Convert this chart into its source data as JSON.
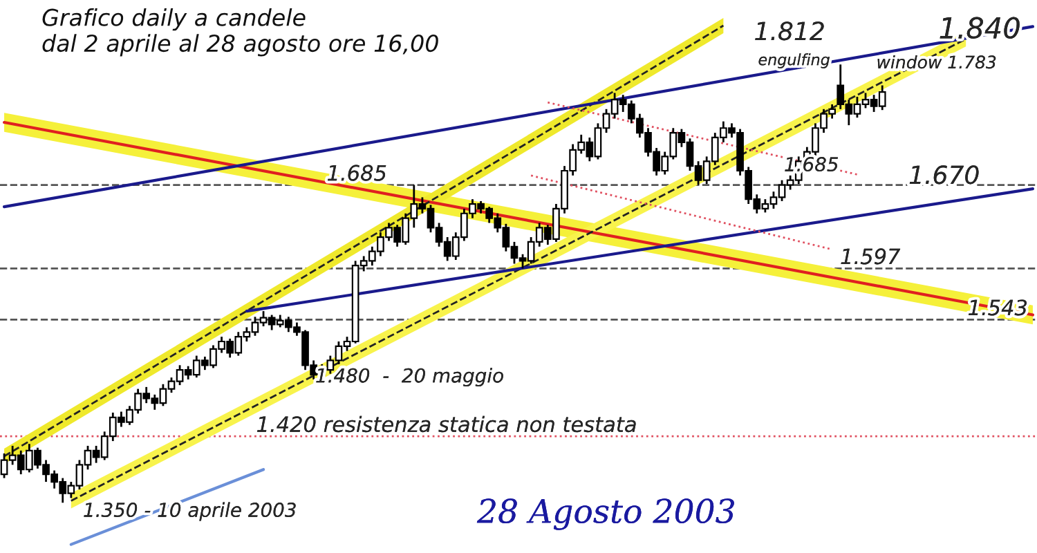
{
  "chart_data": {
    "type": "candlestick",
    "title": "Grafico daily a candele\ndal 2 aprile al 28 agosto ore 16,00",
    "categories": [
      null,
      null,
      null,
      null,
      null,
      null,
      null,
      null,
      null,
      null,
      null,
      null,
      null,
      null,
      null,
      null,
      null,
      null,
      null,
      null,
      null,
      null,
      null,
      null,
      null,
      null,
      null,
      null,
      null,
      null,
      null,
      null,
      null,
      null,
      null,
      null,
      null,
      null,
      null,
      null,
      null,
      null,
      null,
      null,
      null,
      null,
      null,
      null,
      null,
      null,
      null,
      null,
      null,
      null,
      null,
      null,
      null,
      null,
      null,
      null,
      null,
      null,
      null,
      null,
      null,
      null,
      null,
      null,
      null,
      null,
      null,
      null,
      null,
      null,
      null,
      null,
      null,
      null,
      null,
      null,
      null,
      null,
      null,
      null,
      null,
      null,
      null,
      null,
      null,
      null,
      null,
      null,
      null,
      null,
      null,
      null,
      null,
      null,
      null,
      null,
      null,
      null,
      null,
      null,
      null,
      null,
      null,
      null,
      null,
      null,
      null,
      null,
      null,
      null,
      null,
      null,
      null,
      null,
      null,
      null,
      null,
      null,
      null,
      null
    ],
    "ohlc": [
      [
        1.38,
        1.402,
        1.376,
        1.395
      ],
      [
        1.395,
        1.41,
        1.39,
        1.4
      ],
      [
        1.4,
        1.405,
        1.38,
        1.385
      ],
      [
        1.385,
        1.412,
        1.382,
        1.405
      ],
      [
        1.405,
        1.408,
        1.386,
        1.39
      ],
      [
        1.39,
        1.395,
        1.372,
        1.38
      ],
      [
        1.38,
        1.384,
        1.365,
        1.372
      ],
      [
        1.372,
        1.376,
        1.35,
        1.36
      ],
      [
        1.36,
        1.372,
        1.355,
        1.368
      ],
      [
        1.368,
        1.395,
        1.364,
        1.39
      ],
      [
        1.39,
        1.41,
        1.385,
        1.405
      ],
      [
        1.405,
        1.41,
        1.392,
        1.398
      ],
      [
        1.398,
        1.425,
        1.395,
        1.42
      ],
      [
        1.42,
        1.445,
        1.415,
        1.44
      ],
      [
        1.44,
        1.446,
        1.43,
        1.435
      ],
      [
        1.435,
        1.452,
        1.432,
        1.448
      ],
      [
        1.448,
        1.47,
        1.444,
        1.465
      ],
      [
        1.465,
        1.472,
        1.455,
        1.46
      ],
      [
        1.46,
        1.464,
        1.448,
        1.455
      ],
      [
        1.455,
        1.475,
        1.452,
        1.47
      ],
      [
        1.47,
        1.482,
        1.466,
        1.478
      ],
      [
        1.478,
        1.495,
        1.474,
        1.49
      ],
      [
        1.49,
        1.494,
        1.48,
        1.485
      ],
      [
        1.485,
        1.505,
        1.482,
        1.5
      ],
      [
        1.5,
        1.504,
        1.49,
        1.495
      ],
      [
        1.495,
        1.516,
        1.492,
        1.512
      ],
      [
        1.512,
        1.525,
        1.508,
        1.52
      ],
      [
        1.52,
        1.523,
        1.503,
        1.508
      ],
      [
        1.508,
        1.53,
        1.505,
        1.525
      ],
      [
        1.525,
        1.535,
        1.52,
        1.53
      ],
      [
        1.53,
        1.546,
        1.526,
        1.54
      ],
      [
        1.54,
        1.552,
        1.536,
        1.545
      ],
      [
        1.545,
        1.548,
        1.532,
        1.538
      ],
      [
        1.538,
        1.548,
        1.535,
        1.542
      ],
      [
        1.542,
        1.546,
        1.53,
        1.535
      ],
      [
        1.535,
        1.54,
        1.526,
        1.53
      ],
      [
        1.53,
        1.532,
        1.49,
        1.495
      ],
      [
        1.495,
        1.5,
        1.48,
        1.485
      ],
      [
        1.485,
        1.496,
        1.482,
        1.49
      ],
      [
        1.49,
        1.505,
        1.486,
        1.5
      ],
      [
        1.5,
        1.52,
        1.496,
        1.515
      ],
      [
        1.515,
        1.525,
        1.51,
        1.52
      ],
      [
        1.52,
        1.605,
        1.518,
        1.6
      ],
      [
        1.6,
        1.61,
        1.594,
        1.605
      ],
      [
        1.605,
        1.62,
        1.6,
        1.615
      ],
      [
        1.615,
        1.635,
        1.61,
        1.63
      ],
      [
        1.63,
        1.645,
        1.626,
        1.64
      ],
      [
        1.64,
        1.643,
        1.62,
        1.625
      ],
      [
        1.625,
        1.655,
        1.622,
        1.65
      ],
      [
        1.65,
        1.685,
        1.64,
        1.665
      ],
      [
        1.665,
        1.672,
        1.655,
        1.66
      ],
      [
        1.66,
        1.664,
        1.635,
        1.64
      ],
      [
        1.64,
        1.645,
        1.62,
        1.625
      ],
      [
        1.625,
        1.63,
        1.605,
        1.61
      ],
      [
        1.61,
        1.635,
        1.606,
        1.63
      ],
      [
        1.63,
        1.66,
        1.626,
        1.655
      ],
      [
        1.655,
        1.67,
        1.65,
        1.665
      ],
      [
        1.665,
        1.668,
        1.655,
        1.66
      ],
      [
        1.66,
        1.662,
        1.645,
        1.65
      ],
      [
        1.65,
        1.655,
        1.635,
        1.64
      ],
      [
        1.64,
        1.644,
        1.615,
        1.62
      ],
      [
        1.62,
        1.625,
        1.602,
        1.608
      ],
      [
        1.608,
        1.612,
        1.597,
        1.605
      ],
      [
        1.605,
        1.63,
        1.602,
        1.625
      ],
      [
        1.625,
        1.645,
        1.62,
        1.64
      ],
      [
        1.64,
        1.643,
        1.622,
        1.628
      ],
      [
        1.628,
        1.665,
        1.625,
        1.66
      ],
      [
        1.66,
        1.705,
        1.655,
        1.7
      ],
      [
        1.7,
        1.728,
        1.695,
        1.722
      ],
      [
        1.722,
        1.738,
        1.718,
        1.73
      ],
      [
        1.73,
        1.735,
        1.71,
        1.715
      ],
      [
        1.715,
        1.75,
        1.712,
        1.745
      ],
      [
        1.745,
        1.765,
        1.74,
        1.76
      ],
      [
        1.76,
        1.782,
        1.755,
        1.775
      ],
      [
        1.775,
        1.78,
        1.762,
        1.77
      ],
      [
        1.77,
        1.774,
        1.75,
        1.755
      ],
      [
        1.755,
        1.76,
        1.735,
        1.74
      ],
      [
        1.74,
        1.745,
        1.715,
        1.72
      ],
      [
        1.72,
        1.724,
        1.695,
        1.7
      ],
      [
        1.7,
        1.72,
        1.696,
        1.715
      ],
      [
        1.715,
        1.745,
        1.712,
        1.74
      ],
      [
        1.74,
        1.744,
        1.725,
        1.73
      ],
      [
        1.73,
        1.734,
        1.7,
        1.705
      ],
      [
        1.705,
        1.71,
        1.685,
        1.69
      ],
      [
        1.69,
        1.715,
        1.686,
        1.71
      ],
      [
        1.71,
        1.74,
        1.706,
        1.735
      ],
      [
        1.735,
        1.752,
        1.73,
        1.745
      ],
      [
        1.745,
        1.75,
        1.735,
        1.74
      ],
      [
        1.74,
        1.744,
        1.695,
        1.7
      ],
      [
        1.7,
        1.704,
        1.665,
        1.67
      ],
      [
        1.67,
        1.675,
        1.655,
        1.66
      ],
      [
        1.66,
        1.67,
        1.656,
        1.665
      ],
      [
        1.665,
        1.678,
        1.66,
        1.672
      ],
      [
        1.672,
        1.69,
        1.668,
        1.685
      ],
      [
        1.685,
        1.695,
        1.68,
        1.69
      ],
      [
        1.69,
        1.715,
        1.686,
        1.71
      ],
      [
        1.71,
        1.725,
        1.706,
        1.72
      ],
      [
        1.72,
        1.75,
        1.716,
        1.745
      ],
      [
        1.745,
        1.765,
        1.74,
        1.76
      ],
      [
        1.76,
        1.77,
        1.755,
        1.765
      ],
      [
        1.79,
        1.812,
        1.765,
        1.77
      ],
      [
        1.77,
        1.775,
        1.748,
        1.76
      ],
      [
        1.76,
        1.778,
        1.756,
        1.77
      ],
      [
        1.77,
        1.782,
        1.766,
        1.775
      ],
      [
        1.775,
        1.78,
        1.762,
        1.768
      ],
      [
        1.768,
        1.79,
        1.764,
        1.783
      ],
      null,
      null,
      null,
      null,
      null,
      null,
      null,
      null,
      null,
      null,
      null,
      null,
      null,
      null,
      null,
      null,
      null,
      null
    ],
    "series": [
      {
        "type": "line",
        "color": "#e02020",
        "line_style": "solid",
        "values": [
          1.751,
          null,
          null,
          null,
          null,
          null,
          null,
          null,
          null,
          null,
          null,
          null,
          null,
          null,
          null,
          null,
          null,
          null,
          null,
          null,
          null,
          null,
          null,
          null,
          null,
          null,
          null,
          null,
          null,
          null,
          null,
          null,
          null,
          null,
          null,
          null,
          null,
          null,
          null,
          null,
          null,
          null,
          null,
          null,
          null,
          null,
          null,
          null,
          null,
          null,
          null,
          null,
          null,
          null,
          null,
          null,
          null,
          null,
          null,
          null,
          null,
          null,
          null,
          null,
          null,
          null,
          null,
          null,
          null,
          null,
          null,
          null,
          null,
          null,
          null,
          null,
          null,
          null,
          null,
          null,
          null,
          null,
          null,
          null,
          null,
          null,
          null,
          null,
          null,
          null,
          null,
          null,
          null,
          null,
          null,
          null,
          null,
          null,
          null,
          null,
          null,
          null,
          null,
          null,
          null,
          null,
          null,
          null,
          null,
          null,
          null,
          null,
          null,
          null,
          null,
          null,
          null,
          null,
          null,
          null,
          null,
          null,
          null,
          1.548
        ],
        "lower": [
          1.741,
          null,
          null,
          null,
          null,
          null,
          null,
          null,
          null,
          null,
          null,
          null,
          null,
          null,
          null,
          null,
          null,
          null,
          null,
          null,
          null,
          null,
          null,
          null,
          null,
          null,
          null,
          null,
          null,
          null,
          null,
          null,
          null,
          null,
          null,
          null,
          null,
          null,
          null,
          null,
          null,
          null,
          null,
          null,
          null,
          null,
          null,
          null,
          null,
          null,
          null,
          null,
          null,
          null,
          null,
          null,
          null,
          null,
          null,
          null,
          null,
          null,
          null,
          null,
          null,
          null,
          null,
          null,
          null,
          null,
          null,
          null,
          null,
          null,
          null,
          null,
          null,
          null,
          null,
          null,
          null,
          null,
          null,
          null,
          null,
          null,
          null,
          null,
          null,
          null,
          null,
          null,
          null,
          null,
          null,
          null,
          null,
          null,
          null,
          null,
          null,
          null,
          null,
          null,
          null,
          null,
          null,
          null,
          null,
          null,
          null,
          null,
          null,
          null,
          null,
          null,
          null,
          null,
          null,
          null,
          null,
          null,
          null,
          1.538
        ],
        "upper": [
          1.761,
          null,
          null,
          null,
          null,
          null,
          null,
          null,
          null,
          null,
          null,
          null,
          null,
          null,
          null,
          null,
          null,
          null,
          null,
          null,
          null,
          null,
          null,
          null,
          null,
          null,
          null,
          null,
          null,
          null,
          null,
          null,
          null,
          null,
          null,
          null,
          null,
          null,
          null,
          null,
          null,
          null,
          null,
          null,
          null,
          null,
          null,
          null,
          null,
          null,
          null,
          null,
          null,
          null,
          null,
          null,
          null,
          null,
          null,
          null,
          null,
          null,
          null,
          null,
          null,
          null,
          null,
          null,
          null,
          null,
          null,
          null,
          null,
          null,
          null,
          null,
          null,
          null,
          null,
          null,
          null,
          null,
          null,
          null,
          null,
          null,
          null,
          null,
          null,
          null,
          null,
          null,
          null,
          null,
          null,
          null,
          null,
          null,
          null,
          null,
          null,
          null,
          null,
          null,
          null,
          null,
          null,
          null,
          null,
          null,
          null,
          null,
          null,
          null,
          null,
          null,
          null,
          null,
          null,
          null,
          null,
          null,
          null,
          1.558
        ]
      },
      {
        "type": "line",
        "color": "#222222",
        "line_style": "dashed",
        "values": [
          1.399,
          null,
          null,
          null,
          null,
          null,
          null,
          null,
          null,
          null,
          null,
          null,
          null,
          null,
          null,
          null,
          null,
          null,
          null,
          null,
          null,
          null,
          null,
          null,
          null,
          null,
          null,
          null,
          null,
          null,
          null,
          null,
          null,
          null,
          null,
          null,
          null,
          null,
          null,
          null,
          null,
          null,
          null,
          null,
          null,
          null,
          null,
          null,
          null,
          null,
          null,
          null,
          null,
          null,
          null,
          null,
          null,
          null,
          null,
          null,
          null,
          null,
          null,
          null,
          null,
          null,
          null,
          null,
          null,
          null,
          null,
          null,
          null,
          null,
          null,
          null,
          null,
          null,
          null,
          null,
          null,
          null,
          null,
          null,
          null,
          null,
          1.853,
          null,
          null,
          null,
          null,
          null,
          null,
          null,
          null,
          null,
          null,
          null,
          null,
          null,
          null,
          null,
          null,
          null,
          null,
          null,
          null,
          null,
          null,
          null,
          null,
          null,
          null,
          null,
          null,
          null,
          null,
          null,
          null,
          null,
          null,
          null,
          null,
          null
        ],
        "lower": [
          1.391,
          null,
          null,
          null,
          null,
          null,
          null,
          null,
          null,
          null,
          null,
          null,
          null,
          null,
          null,
          null,
          null,
          null,
          null,
          null,
          null,
          null,
          null,
          null,
          null,
          null,
          null,
          null,
          null,
          null,
          null,
          null,
          null,
          null,
          null,
          null,
          null,
          null,
          null,
          null,
          null,
          null,
          null,
          null,
          null,
          null,
          null,
          null,
          null,
          null,
          null,
          null,
          null,
          null,
          null,
          null,
          null,
          null,
          null,
          null,
          null,
          null,
          null,
          null,
          null,
          null,
          null,
          null,
          null,
          null,
          null,
          null,
          null,
          null,
          null,
          null,
          null,
          null,
          null,
          null,
          null,
          null,
          null,
          null,
          null,
          null,
          1.845,
          null,
          null,
          null,
          null,
          null,
          null,
          null,
          null,
          null,
          null,
          null,
          null,
          null,
          null,
          null,
          null,
          null,
          null,
          null,
          null,
          null,
          null,
          null,
          null,
          null,
          null,
          null,
          null,
          null,
          null,
          null,
          null,
          null,
          null,
          null,
          null,
          null
        ],
        "upper": [
          1.407,
          null,
          null,
          null,
          null,
          null,
          null,
          null,
          null,
          null,
          null,
          null,
          null,
          null,
          null,
          null,
          null,
          null,
          null,
          null,
          null,
          null,
          null,
          null,
          null,
          null,
          null,
          null,
          null,
          null,
          null,
          null,
          null,
          null,
          null,
          null,
          null,
          null,
          null,
          null,
          null,
          null,
          null,
          null,
          null,
          null,
          null,
          null,
          null,
          null,
          null,
          null,
          null,
          null,
          null,
          null,
          null,
          null,
          null,
          null,
          null,
          null,
          null,
          null,
          null,
          null,
          null,
          null,
          null,
          null,
          null,
          null,
          null,
          null,
          null,
          null,
          null,
          null,
          null,
          null,
          null,
          null,
          null,
          null,
          null,
          null,
          1.861,
          null,
          null,
          null,
          null,
          null,
          null,
          null,
          null,
          null,
          null,
          null,
          null,
          null,
          null,
          null,
          null,
          null,
          null,
          null,
          null,
          null,
          null,
          null,
          null,
          null,
          null,
          null,
          null,
          null,
          null,
          null,
          null,
          null,
          null,
          null,
          null,
          null
        ]
      },
      {
        "type": "line",
        "color": "#222222",
        "line_style": "dashed",
        "values": [
          null,
          null,
          null,
          null,
          null,
          null,
          null,
          null,
          1.352,
          null,
          null,
          null,
          null,
          null,
          null,
          null,
          null,
          null,
          null,
          null,
          null,
          null,
          null,
          null,
          null,
          null,
          null,
          null,
          null,
          null,
          null,
          null,
          null,
          null,
          null,
          null,
          null,
          null,
          null,
          null,
          null,
          null,
          null,
          null,
          null,
          null,
          null,
          null,
          null,
          null,
          null,
          null,
          null,
          null,
          null,
          null,
          null,
          null,
          null,
          null,
          null,
          null,
          null,
          null,
          null,
          null,
          null,
          null,
          null,
          null,
          null,
          null,
          null,
          null,
          null,
          null,
          null,
          null,
          null,
          null,
          null,
          null,
          null,
          null,
          null,
          null,
          null,
          null,
          null,
          null,
          null,
          null,
          null,
          null,
          null,
          null,
          null,
          null,
          null,
          null,
          null,
          null,
          null,
          null,
          null,
          null,
          null,
          null,
          null,
          null,
          null,
          null,
          null,
          null,
          null,
          1.839,
          null,
          null,
          null,
          null,
          null,
          null,
          null,
          null
        ],
        "lower": [
          null,
          null,
          null,
          null,
          null,
          null,
          null,
          null,
          1.344,
          null,
          null,
          null,
          null,
          null,
          null,
          null,
          null,
          null,
          null,
          null,
          null,
          null,
          null,
          null,
          null,
          null,
          null,
          null,
          null,
          null,
          null,
          null,
          null,
          null,
          null,
          null,
          null,
          null,
          null,
          null,
          null,
          null,
          null,
          null,
          null,
          null,
          null,
          null,
          null,
          null,
          null,
          null,
          null,
          null,
          null,
          null,
          null,
          null,
          null,
          null,
          null,
          null,
          null,
          null,
          null,
          null,
          null,
          null,
          null,
          null,
          null,
          null,
          null,
          null,
          null,
          null,
          null,
          null,
          null,
          null,
          null,
          null,
          null,
          null,
          null,
          null,
          null,
          null,
          null,
          null,
          null,
          null,
          null,
          null,
          null,
          null,
          null,
          null,
          null,
          null,
          null,
          null,
          null,
          null,
          null,
          null,
          null,
          null,
          null,
          null,
          null,
          null,
          null,
          null,
          null,
          1.831,
          null,
          null,
          null,
          null,
          null,
          null,
          null,
          null
        ],
        "upper": [
          null,
          null,
          null,
          null,
          null,
          null,
          null,
          null,
          1.36,
          null,
          null,
          null,
          null,
          null,
          null,
          null,
          null,
          null,
          null,
          null,
          null,
          null,
          null,
          null,
          null,
          null,
          null,
          null,
          null,
          null,
          null,
          null,
          null,
          null,
          null,
          null,
          null,
          null,
          null,
          null,
          null,
          null,
          null,
          null,
          null,
          null,
          null,
          null,
          null,
          null,
          null,
          null,
          null,
          null,
          null,
          null,
          null,
          null,
          null,
          null,
          null,
          null,
          null,
          null,
          null,
          null,
          null,
          null,
          null,
          null,
          null,
          null,
          null,
          null,
          null,
          null,
          null,
          null,
          null,
          null,
          null,
          null,
          null,
          null,
          null,
          null,
          null,
          null,
          null,
          null,
          null,
          null,
          null,
          null,
          null,
          null,
          null,
          null,
          null,
          null,
          null,
          null,
          null,
          null,
          null,
          null,
          null,
          null,
          null,
          null,
          null,
          null,
          null,
          null,
          null,
          1.847,
          null,
          null,
          null,
          null,
          null,
          null,
          null,
          null
        ]
      },
      {
        "type": "line",
        "color": "#1a1a8c",
        "line_style": "solid",
        "values": [
          1.662,
          null,
          null,
          null,
          null,
          null,
          null,
          null,
          null,
          null,
          null,
          null,
          null,
          null,
          null,
          null,
          null,
          null,
          null,
          null,
          null,
          null,
          null,
          null,
          null,
          null,
          null,
          null,
          null,
          null,
          null,
          null,
          null,
          null,
          null,
          null,
          null,
          null,
          null,
          null,
          null,
          null,
          null,
          null,
          null,
          null,
          null,
          null,
          null,
          null,
          null,
          null,
          null,
          null,
          null,
          null,
          null,
          null,
          null,
          null,
          null,
          null,
          null,
          null,
          null,
          null,
          null,
          null,
          null,
          null,
          null,
          null,
          null,
          null,
          null,
          null,
          null,
          null,
          null,
          null,
          null,
          null,
          null,
          null,
          null,
          null,
          null,
          null,
          null,
          null,
          null,
          null,
          null,
          null,
          null,
          null,
          null,
          null,
          null,
          null,
          null,
          null,
          null,
          null,
          null,
          null,
          null,
          null,
          null,
          null,
          null,
          null,
          null,
          null,
          null,
          null,
          null,
          null,
          null,
          null,
          null,
          null,
          null,
          1.852
        ]
      },
      {
        "type": "line",
        "color": "#1a1a8c",
        "line_style": "solid",
        "values": [
          null,
          null,
          null,
          null,
          null,
          null,
          null,
          null,
          null,
          null,
          null,
          null,
          null,
          null,
          null,
          null,
          null,
          null,
          null,
          null,
          null,
          null,
          null,
          null,
          null,
          null,
          null,
          null,
          null,
          1.552,
          null,
          null,
          null,
          null,
          null,
          null,
          null,
          null,
          null,
          null,
          null,
          null,
          null,
          null,
          null,
          null,
          null,
          null,
          null,
          null,
          null,
          null,
          null,
          null,
          null,
          null,
          null,
          null,
          null,
          null,
          null,
          null,
          null,
          null,
          null,
          null,
          null,
          null,
          null,
          null,
          null,
          null,
          null,
          null,
          null,
          null,
          null,
          null,
          null,
          null,
          null,
          null,
          null,
          null,
          null,
          null,
          null,
          null,
          null,
          null,
          null,
          null,
          null,
          null,
          null,
          null,
          null,
          null,
          null,
          null,
          null,
          null,
          null,
          null,
          null,
          null,
          null,
          null,
          null,
          null,
          null,
          null,
          null,
          null,
          null,
          null,
          null,
          null,
          null,
          null,
          null,
          null,
          null,
          1.681
        ]
      },
      {
        "type": "line",
        "color": "#6a8fd8",
        "line_style": "solid",
        "values": [
          null,
          null,
          null,
          null,
          null,
          null,
          null,
          null,
          1.306,
          null,
          null,
          null,
          null,
          null,
          null,
          null,
          null,
          null,
          null,
          null,
          null,
          null,
          null,
          null,
          null,
          null,
          null,
          null,
          null,
          null,
          null,
          1.385,
          null,
          null,
          null,
          null,
          null,
          null,
          null,
          null,
          null,
          null,
          null,
          null,
          null,
          null,
          null,
          null,
          null,
          null,
          null,
          null,
          null,
          null,
          null,
          null,
          null,
          null,
          null,
          null,
          null,
          null,
          null,
          null,
          null,
          null,
          null,
          null,
          null,
          null,
          null,
          null,
          null,
          null,
          null,
          null,
          null,
          null,
          null,
          null,
          null,
          null,
          null,
          null,
          null,
          null,
          null,
          null,
          null,
          null,
          null,
          null,
          null,
          null,
          null,
          null,
          null,
          null,
          null,
          null,
          null,
          null,
          null,
          null,
          null,
          null,
          null,
          null,
          null,
          null,
          null,
          null,
          null,
          null,
          null,
          null,
          null,
          null,
          null,
          null,
          null,
          null,
          null,
          null
        ]
      },
      {
        "type": "line",
        "color": "#e05060",
        "line_style": "dotted",
        "values": [
          null,
          null,
          null,
          null,
          null,
          null,
          null,
          null,
          null,
          null,
          null,
          null,
          null,
          null,
          null,
          null,
          null,
          null,
          null,
          null,
          null,
          null,
          null,
          null,
          null,
          null,
          null,
          null,
          null,
          null,
          null,
          null,
          null,
          null,
          null,
          null,
          null,
          null,
          null,
          null,
          null,
          null,
          null,
          null,
          null,
          null,
          null,
          null,
          null,
          null,
          null,
          null,
          null,
          null,
          null,
          null,
          null,
          null,
          null,
          null,
          null,
          null,
          null,
          null,
          null,
          1.772,
          null,
          null,
          null,
          null,
          null,
          null,
          null,
          null,
          null,
          null,
          null,
          null,
          null,
          null,
          null,
          null,
          null,
          null,
          null,
          null,
          null,
          null,
          null,
          null,
          null,
          null,
          null,
          null,
          null,
          null,
          null,
          null,
          null,
          null,
          null,
          null,
          1.696,
          null,
          null,
          null,
          null,
          null,
          null,
          null,
          null,
          null,
          null,
          null,
          null,
          null,
          null,
          null,
          null,
          null,
          null,
          null,
          null,
          null
        ]
      },
      {
        "type": "line",
        "color": "#e05060",
        "line_style": "dotted",
        "values": [
          null,
          null,
          null,
          null,
          null,
          null,
          null,
          null,
          null,
          null,
          null,
          null,
          null,
          null,
          null,
          null,
          null,
          null,
          null,
          null,
          null,
          null,
          null,
          null,
          null,
          null,
          null,
          null,
          null,
          null,
          null,
          null,
          null,
          null,
          null,
          null,
          null,
          null,
          null,
          null,
          null,
          null,
          null,
          null,
          null,
          null,
          null,
          null,
          null,
          null,
          null,
          null,
          null,
          null,
          null,
          null,
          null,
          null,
          null,
          null,
          null,
          null,
          null,
          1.695,
          null,
          null,
          null,
          null,
          null,
          null,
          null,
          null,
          null,
          null,
          null,
          null,
          null,
          null,
          null,
          null,
          null,
          null,
          null,
          null,
          null,
          null,
          null,
          null,
          null,
          null,
          null,
          null,
          null,
          null,
          null,
          null,
          null,
          null,
          null,
          1.617,
          null,
          null,
          null,
          null,
          null,
          null,
          null,
          null,
          null,
          null,
          null,
          null,
          null,
          null,
          null,
          null,
          null,
          null,
          null,
          null,
          null,
          null,
          null,
          null
        ]
      }
    ],
    "ref_lines": [
      {
        "axis": "y",
        "value": 1.685,
        "label": "1.685",
        "color": "#555555",
        "line_style": "dashed"
      },
      {
        "axis": "y",
        "value": 1.597,
        "label": "1.597",
        "color": "#555555",
        "line_style": "dashed"
      },
      {
        "axis": "y",
        "value": 1.543,
        "label": "1.543",
        "color": "#555555",
        "line_style": "dashed"
      },
      {
        "axis": "y",
        "value": 1.42,
        "label": "1.420 resistenza statica non testata",
        "color": "#e05060",
        "line_style": "dotted"
      }
    ],
    "annotations": [
      "1.812",
      "1.840",
      "window 1.783",
      "1.670",
      "1.685",
      "1.480  -  20 maggio",
      "1.350 - 10 aprile 2003",
      "engulfing",
      "28 Agosto 2003"
    ],
    "ylim": [
      1.297,
      1.88
    ]
  }
}
